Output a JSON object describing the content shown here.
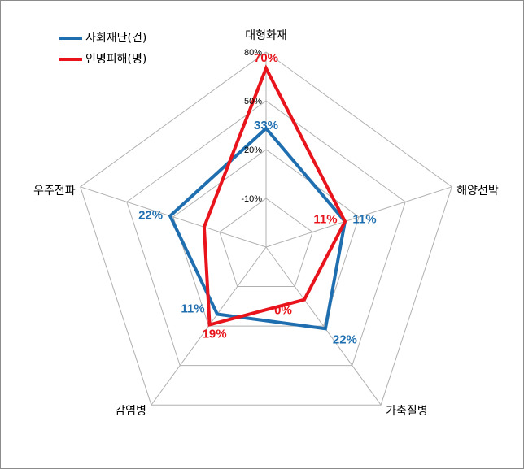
{
  "chart_data": {
    "type": "radar",
    "categories": [
      "대형화재",
      "해양선박",
      "가축질병",
      "감염병",
      "우주전파"
    ],
    "series": [
      {
        "name": "사회재난(건)",
        "color": "#1f6fb0",
        "values": [
          33,
          11,
          22,
          11,
          22
        ],
        "labels": [
          "33%",
          "11%",
          "22%",
          "11%",
          "22%"
        ]
      },
      {
        "name": "인명피해(명)",
        "color": "#e8131b",
        "values": [
          70,
          11,
          0,
          19,
          0
        ],
        "labels": [
          "70%",
          "11%",
          "0%",
          "19%",
          ""
        ]
      }
    ],
    "rlim": [
      -40,
      80
    ],
    "ticks": [
      {
        "value": -10,
        "label": "-10%"
      },
      {
        "value": 20,
        "label": "20%"
      },
      {
        "value": 50,
        "label": "50%"
      },
      {
        "value": 80,
        "label": "80%"
      }
    ],
    "grid": true,
    "legend_position": "top-left"
  }
}
